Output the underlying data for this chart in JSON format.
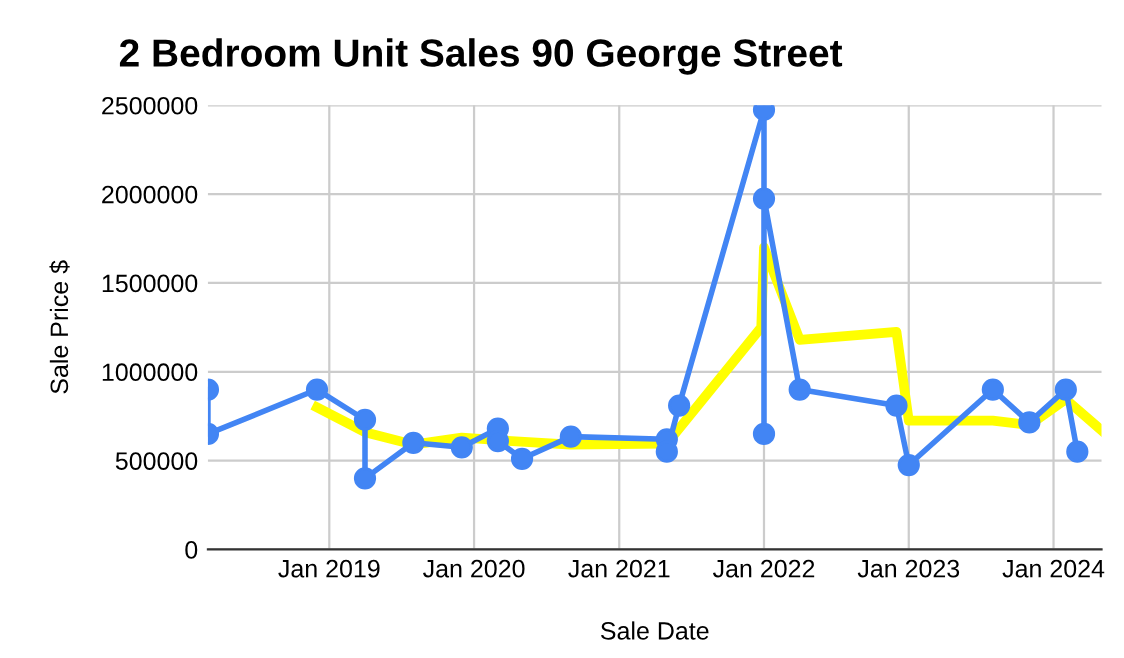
{
  "chart_data": {
    "type": "line",
    "title": "2 Bedroom Unit Sales 90 George Street",
    "xlabel": "Sale Date",
    "ylabel": "Sale Price $",
    "series": [
      {
        "color": "#4285f4",
        "marker": "circle",
        "x": [
          "2018-03",
          "2018-03",
          "2018-12",
          "2019-04",
          "2019-04",
          "2019-08",
          "2019-12",
          "2020-03",
          "2020-03",
          "2020-05",
          "2020-09",
          "2021-05",
          "2021-05",
          "2021-06",
          "2022-01",
          "2022-01",
          "2022-01",
          "2022-04",
          "2022-12",
          "2023-01",
          "2023-08",
          "2023-11",
          "2024-02",
          "2024-03"
        ],
        "values": [
          900000,
          650000,
          900000,
          730000,
          400000,
          600000,
          575000,
          680000,
          610000,
          510000,
          635000,
          620000,
          550000,
          810000,
          2475000,
          650000,
          1975000,
          900000,
          810000,
          475000,
          900000,
          715000,
          900000,
          550000
        ]
      },
      {
        "color": "#ffff00",
        "marker": "none",
        "x": [
          "2018-12",
          "2019-04",
          "2019-08",
          "2019-12",
          "2020-03",
          "2020-09",
          "2021-05",
          "2021-12-25",
          "2022-01",
          "2022-04",
          "2022-12",
          "2023-01",
          "2023-08",
          "2023-11",
          "2024-02",
          "2024-05"
        ],
        "values": [
          800000,
          660000,
          590000,
          630000,
          615000,
          590000,
          595000,
          1250000,
          1700000,
          1180000,
          1225000,
          725000,
          725000,
          700000,
          845000,
          670000
        ]
      }
    ],
    "xlim": [
      "2018-03",
      "2024-05"
    ],
    "xticks": [
      {
        "value": "2019-01",
        "label": "Jan 2019"
      },
      {
        "value": "2020-01",
        "label": "Jan 2020"
      },
      {
        "value": "2021-01",
        "label": "Jan 2021"
      },
      {
        "value": "2022-01",
        "label": "Jan 2022"
      },
      {
        "value": "2023-01",
        "label": "Jan 2023"
      },
      {
        "value": "2024-01",
        "label": "Jan 2024"
      }
    ],
    "ylim": [
      0,
      2500000
    ],
    "yticks": [
      0,
      500000,
      1000000,
      1500000,
      2000000,
      2500000
    ],
    "grid": true,
    "legend": false
  }
}
